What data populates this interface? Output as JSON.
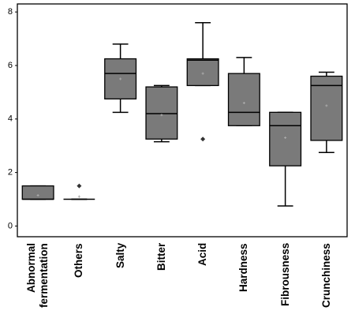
{
  "chart_data": {
    "type": "box",
    "categories": [
      "Abnormal fermentation",
      "Others",
      "Salty",
      "Bitter",
      "Acid",
      "Hardness",
      "Fibrousness",
      "Crunchiness"
    ],
    "min": [
      1.0,
      1.0,
      4.25,
      3.15,
      5.25,
      3.75,
      0.75,
      2.75
    ],
    "q1": [
      1.0,
      1.0,
      4.75,
      3.25,
      5.25,
      3.75,
      2.25,
      3.2
    ],
    "median": [
      1.0,
      1.0,
      5.7,
      4.2,
      6.2,
      4.25,
      3.75,
      5.25
    ],
    "q3": [
      1.5,
      1.0,
      6.25,
      5.2,
      6.25,
      5.7,
      4.25,
      5.6
    ],
    "max": [
      1.5,
      1.0,
      6.8,
      5.25,
      7.6,
      6.3,
      4.25,
      5.75
    ],
    "mean": [
      1.15,
      1.1,
      5.5,
      4.15,
      5.7,
      4.6,
      3.3,
      4.5
    ],
    "outliers": [
      [],
      [
        1.5
      ],
      [],
      [],
      [
        3.25
      ],
      [],
      [],
      []
    ],
    "color": "#7a7a7a",
    "ylim": [
      -0.4,
      8.3
    ],
    "yticks": [
      0,
      2,
      4,
      6,
      8
    ]
  }
}
